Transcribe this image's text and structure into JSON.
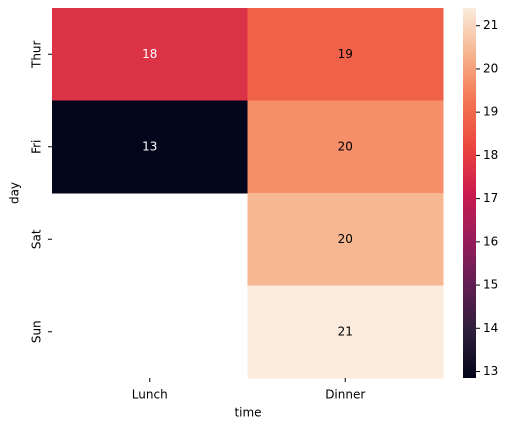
{
  "chart_data": {
    "type": "heatmap",
    "xlabel": "time",
    "ylabel": "day",
    "x_categories": [
      "Lunch",
      "Dinner"
    ],
    "y_categories": [
      "Thur",
      "Fri",
      "Sat",
      "Sun"
    ],
    "values": [
      [
        17.7,
        18.8
      ],
      [
        12.85,
        19.7
      ],
      [
        null,
        20.4
      ],
      [
        null,
        21.41
      ]
    ],
    "value_labels": [
      [
        "18",
        "19"
      ],
      [
        "13",
        "20"
      ],
      [
        null,
        "20"
      ],
      [
        null,
        "21"
      ]
    ],
    "colormap": "rocket",
    "clim": [
      12.85,
      21.41
    ],
    "colorbar_ticks": [
      13,
      14,
      15,
      16,
      17,
      18,
      19,
      20,
      21
    ]
  }
}
